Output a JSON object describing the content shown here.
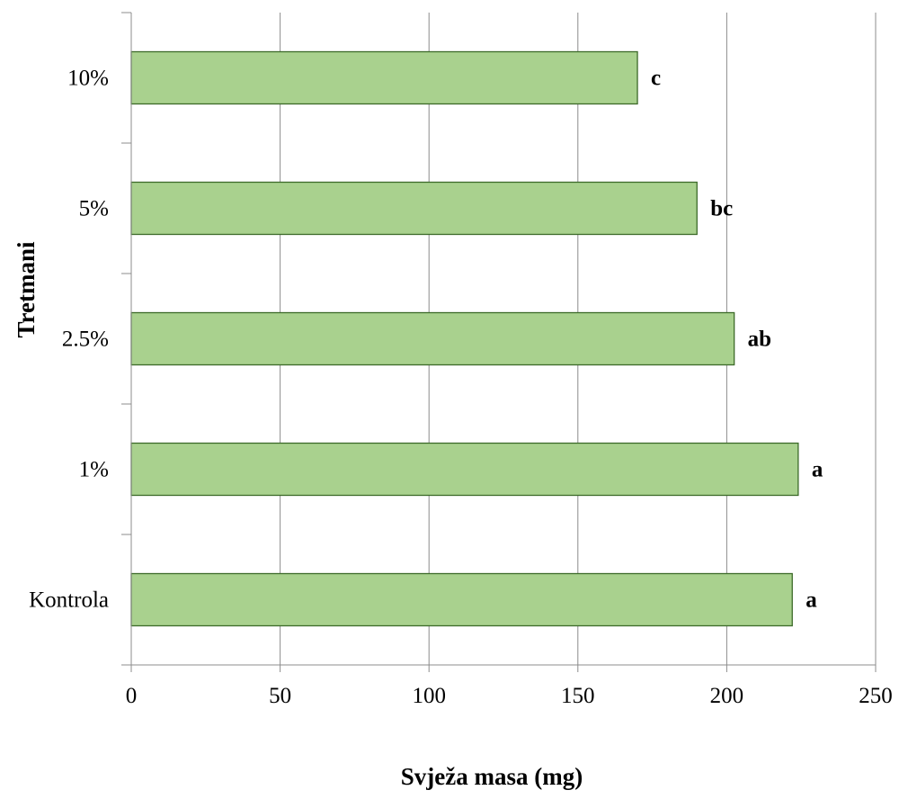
{
  "chart_data": {
    "type": "bar",
    "orientation": "horizontal",
    "categories": [
      "Kontrola",
      "1%",
      "2.5%",
      "5%",
      "10%"
    ],
    "values": [
      222,
      224,
      202.5,
      190,
      170
    ],
    "data_labels": [
      "a",
      "a",
      "ab",
      "bc",
      "c"
    ],
    "xlabel": "Svježa masa (mg)",
    "ylabel": "Tretmani",
    "xlim": [
      0,
      250
    ],
    "xticks": [
      0,
      50,
      100,
      150,
      200,
      250
    ],
    "grid": "vertical",
    "legend": "none",
    "colors": {
      "bar_fill": "#a9d18e",
      "bar_stroke": "#3d6b2a",
      "grid": "#8c8c8c",
      "axis": "#8c8c8c"
    }
  }
}
